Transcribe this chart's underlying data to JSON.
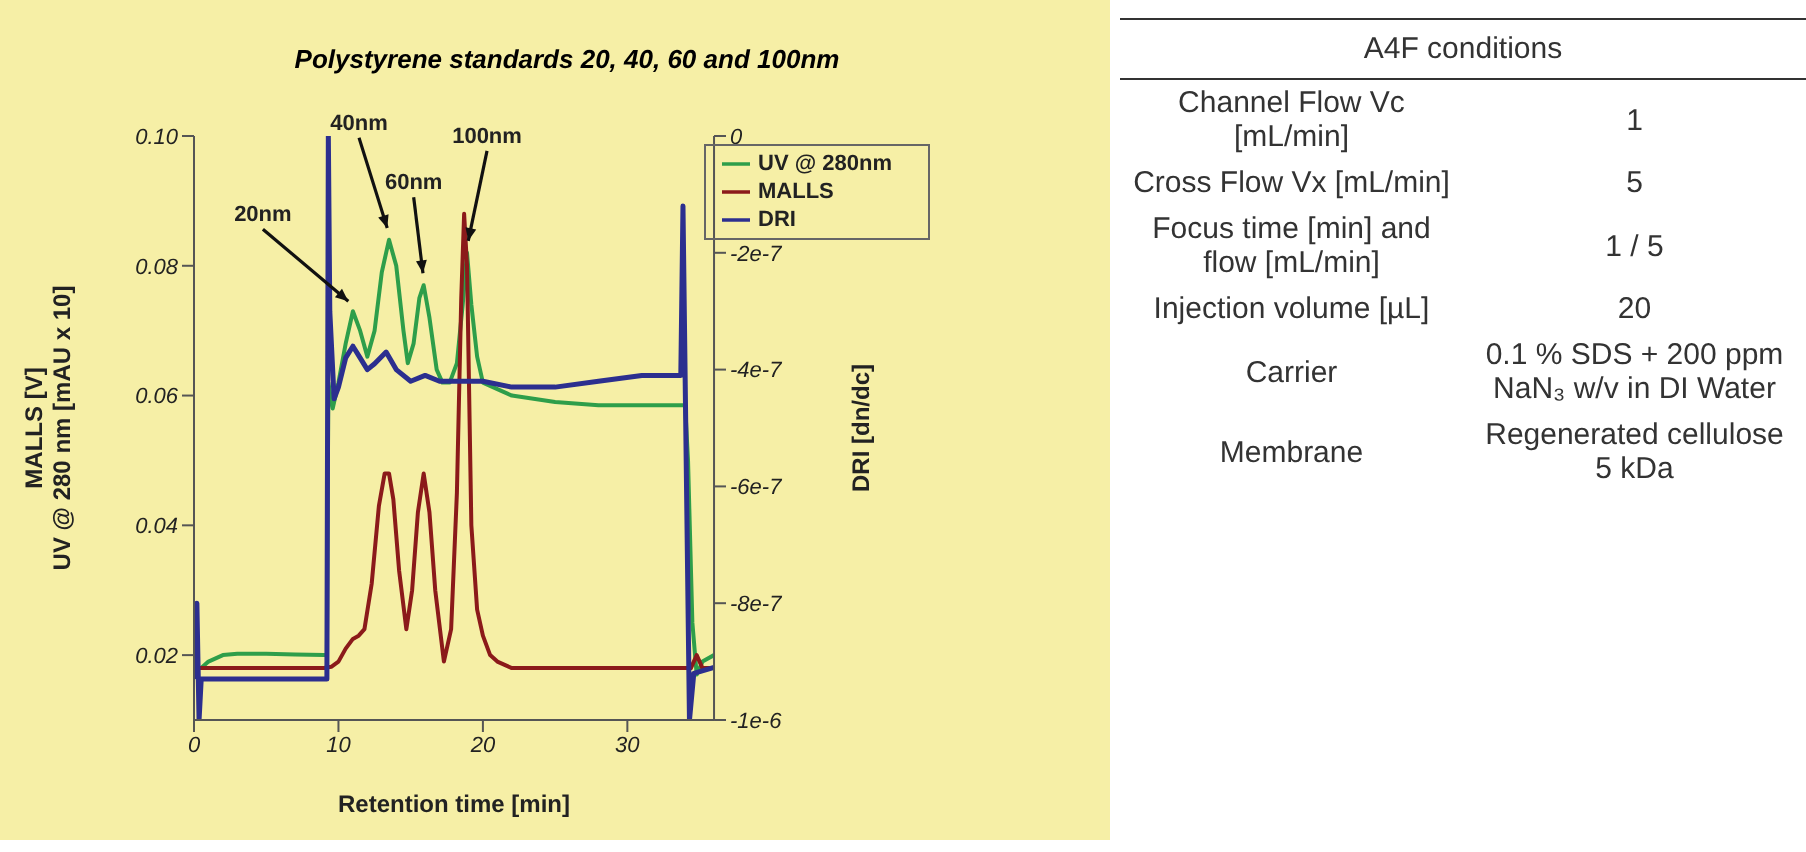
{
  "chart_data": [
    {
      "type": "line",
      "title": "Polystyrene standards 20, 40, 60 and 100nm",
      "xlabel": "Retention time [min]",
      "ylabel": "MALLS [V]\nUV @ 280 nm [mAU x 10]",
      "y2label": "DRI [dn/dc]",
      "xlim": [
        0,
        36
      ],
      "xticks": [
        0,
        10,
        20,
        30
      ],
      "ylim": [
        0.01,
        0.1
      ],
      "yticks": [
        0.02,
        0.04,
        0.06,
        0.08,
        {
          "value": 0.1,
          "label": "0.10"
        }
      ],
      "y2lim": [
        -1e-06,
        0
      ],
      "y2ticks": [
        {
          "value": -1e-06,
          "label": "-1e-6"
        },
        {
          "value": -8e-07,
          "label": "-8e-7"
        },
        {
          "value": -6e-07,
          "label": "-6e-7"
        },
        {
          "value": -4e-07,
          "label": "-4e-7"
        },
        {
          "value": -2e-07,
          "label": "-2e-7"
        },
        0
      ],
      "legend": "top right",
      "marker": "none",
      "line_style": "solid",
      "series": [
        {
          "name": "UV @ 280nm",
          "color": "#2e9e4a",
          "x": [
            0,
            0.5,
            1,
            1.5,
            2,
            3,
            5,
            7,
            9,
            9.2,
            9.3,
            9.6,
            10,
            10.5,
            11,
            11.5,
            12,
            12.5,
            13,
            13.5,
            14,
            14.5,
            14.8,
            15.2,
            15.6,
            15.9,
            16.3,
            16.8,
            17.2,
            17.7,
            18.2,
            18.6,
            18.9,
            19.2,
            19.6,
            20,
            21,
            22,
            25,
            28,
            31,
            34,
            34.2,
            34.5,
            34.8,
            35.2,
            36
          ],
          "values": [
            0.018,
            0.018,
            0.019,
            0.0195,
            0.02,
            0.0202,
            0.0202,
            0.0201,
            0.02,
            0.02,
            0.062,
            0.058,
            0.062,
            0.068,
            0.073,
            0.07,
            0.066,
            0.07,
            0.079,
            0.084,
            0.08,
            0.07,
            0.065,
            0.068,
            0.075,
            0.077,
            0.072,
            0.064,
            0.062,
            0.062,
            0.065,
            0.074,
            0.082,
            0.074,
            0.066,
            0.062,
            0.061,
            0.06,
            0.059,
            0.0585,
            0.0585,
            0.0585,
            0.05,
            0.025,
            0.017,
            0.019,
            0.02
          ]
        },
        {
          "name": "MALLS",
          "color": "#8b1a1a",
          "x": [
            0,
            5,
            9,
            9.5,
            10,
            10.5,
            11,
            11.4,
            11.8,
            12.3,
            12.8,
            13.2,
            13.5,
            13.8,
            14.2,
            14.7,
            15.1,
            15.5,
            15.9,
            16.3,
            16.7,
            17.3,
            17.8,
            18.2,
            18.5,
            18.7,
            18.9,
            19.2,
            19.6,
            20,
            20.5,
            21,
            22,
            25,
            30,
            34,
            34.4,
            34.8,
            35.2,
            36
          ],
          "values": [
            0.018,
            0.018,
            0.018,
            0.0182,
            0.019,
            0.021,
            0.0225,
            0.023,
            0.024,
            0.031,
            0.043,
            0.048,
            0.048,
            0.044,
            0.033,
            0.024,
            0.03,
            0.042,
            0.048,
            0.042,
            0.03,
            0.019,
            0.024,
            0.045,
            0.075,
            0.088,
            0.08,
            0.04,
            0.027,
            0.023,
            0.02,
            0.019,
            0.018,
            0.018,
            0.018,
            0.018,
            0.018,
            0.02,
            0.018,
            0.018
          ]
        },
        {
          "name": "DRI",
          "color": "#2c2f8f",
          "axis": "y2",
          "x": [
            0,
            0.2,
            0.35,
            0.5,
            9.2,
            9.3,
            9.4,
            9.7,
            10,
            10.5,
            11,
            11.5,
            12,
            12.5,
            13.3,
            14,
            15,
            16,
            17,
            18,
            20,
            22,
            25,
            28,
            31,
            33.7,
            33.85,
            34.3,
            34.6,
            36
          ],
          "values": [
            -9.3e-07,
            -8e-07,
            -1e-06,
            -9.3e-07,
            -9.3e-07,
            0,
            -3e-07,
            -4.5e-07,
            -4.3e-07,
            -3.8e-07,
            -3.6e-07,
            -3.8e-07,
            -4e-07,
            -3.9e-07,
            -3.7e-07,
            -4e-07,
            -4.2e-07,
            -4.1e-07,
            -4.2e-07,
            -4.2e-07,
            -4.2e-07,
            -4.3e-07,
            -4.3e-07,
            -4.2e-07,
            -4.1e-07,
            -4.1e-07,
            -1.2e-07,
            -1e-06,
            -9.2e-07,
            -9.1e-07
          ]
        }
      ],
      "annotations": [
        {
          "text": "20nm",
          "x": 11,
          "y": 0.073
        },
        {
          "text": "40nm",
          "x": 13.5,
          "y": 0.084
        },
        {
          "text": "60nm",
          "x": 15.9,
          "y": 0.077
        },
        {
          "text": "100nm",
          "x": 18.9,
          "y": 0.082
        }
      ]
    },
    {
      "type": "other",
      "title": "A4F conditions",
      "categories": [
        "Channel Flow Vc [mL/min]",
        "Cross Flow Vx [mL/min]",
        "Focus time [min] and flow [mL/min]",
        "Injection volume [µL]",
        "Carrier",
        "Membrane"
      ],
      "annotations": [
        "1",
        "5",
        "1 / 5",
        "20",
        "0.1 % SDS + 200 ppm NaN₃ w/v in DI Water",
        "Regenerated cellulose 5 kDa"
      ]
    }
  ]
}
